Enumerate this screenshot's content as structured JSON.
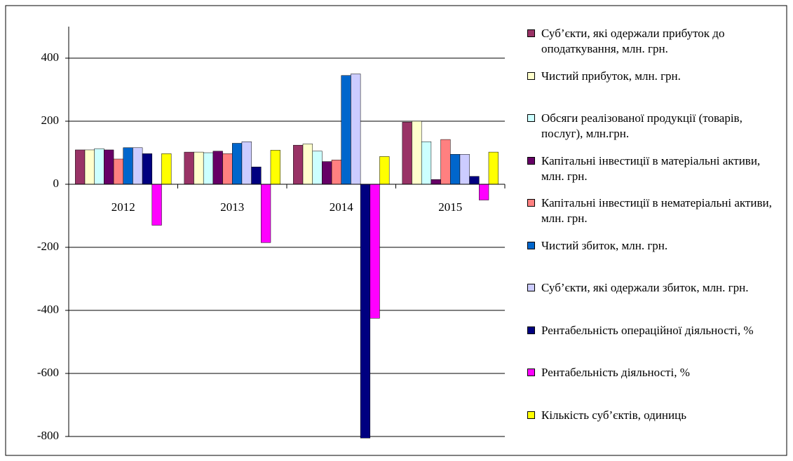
{
  "chart_data": {
    "type": "bar",
    "categories": [
      "2012",
      "2013",
      "2014",
      "2015"
    ],
    "ylim": [
      -800,
      500
    ],
    "yticks": [
      -800,
      -600,
      -400,
      -200,
      0,
      200,
      400
    ],
    "grid": true,
    "series": [
      {
        "name": "Суб’єкти, які одержали прибуток до оподаткування, млн. грн.",
        "color": "#993366",
        "values": [
          109,
          102,
          124,
          197
        ]
      },
      {
        "name": "Чистий прибуток, млн. грн.",
        "color": "#ffffcc",
        "values": [
          109,
          102,
          128,
          200
        ]
      },
      {
        "name": "Обсяги реалізованої продукції (товарів, послуг), млн.грн.",
        "color": "#ccffff",
        "values": [
          113,
          100,
          105,
          135
        ]
      },
      {
        "name": "Капітальні інвестиції в матеріальні активи, млн. грн.",
        "color": "#660066",
        "values": [
          109,
          105,
          72,
          15
        ]
      },
      {
        "name": "Капітальні інвестиції в нематеріальні активи, млн. грн.",
        "color": "#ff8080",
        "values": [
          80,
          97,
          77,
          142
        ]
      },
      {
        "name": "Чистий збиток, млн. грн.",
        "color": "#0066cc",
        "values": [
          116,
          130,
          345,
          95
        ]
      },
      {
        "name": "Суб’єкти, які одержали збиток, млн. грн.",
        "color": "#ccccff",
        "values": [
          116,
          135,
          350,
          95
        ]
      },
      {
        "name": "Рентабельність операційної діяльності, %",
        "color": "#000080",
        "values": [
          97,
          55,
          -805,
          25
        ]
      },
      {
        "name": "Рентабельність діяльності, %",
        "color": "#ff00ff",
        "values": [
          -130,
          -185,
          -425,
          -50
        ]
      },
      {
        "name": "Кількість суб’єктів, одиниць",
        "color": "#ffff00",
        "values": [
          97,
          108,
          88,
          102
        ]
      }
    ]
  }
}
